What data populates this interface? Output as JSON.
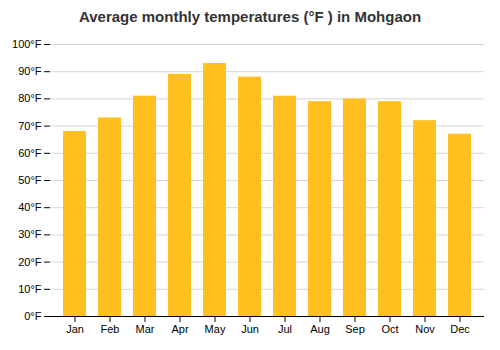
{
  "chart_data": {
    "type": "bar",
    "title": "Average monthly temperatures (°F ) in Mohgaon",
    "categories": [
      "Jan",
      "Feb",
      "Mar",
      "Apr",
      "May",
      "Jun",
      "Jul",
      "Aug",
      "Sep",
      "Oct",
      "Nov",
      "Dec"
    ],
    "values": [
      68,
      73,
      81,
      89,
      93,
      88,
      81,
      79,
      80,
      79,
      72,
      67
    ],
    "color": "#FFC020",
    "ylim": [
      0,
      100
    ],
    "yticks": [
      {
        "value": 0,
        "label": "0°F"
      },
      {
        "value": 10,
        "label": "10°F"
      },
      {
        "value": 20,
        "label": "20°F"
      },
      {
        "value": 30,
        "label": "30°F"
      },
      {
        "value": 40,
        "label": "40°F"
      },
      {
        "value": 50,
        "label": "50°F"
      },
      {
        "value": 60,
        "label": "60°F"
      },
      {
        "value": 70,
        "label": "70°F"
      },
      {
        "value": 80,
        "label": "80°F"
      },
      {
        "value": 90,
        "label": "90°F"
      },
      {
        "value": 100,
        "label": "100°F"
      }
    ],
    "grid": true
  }
}
